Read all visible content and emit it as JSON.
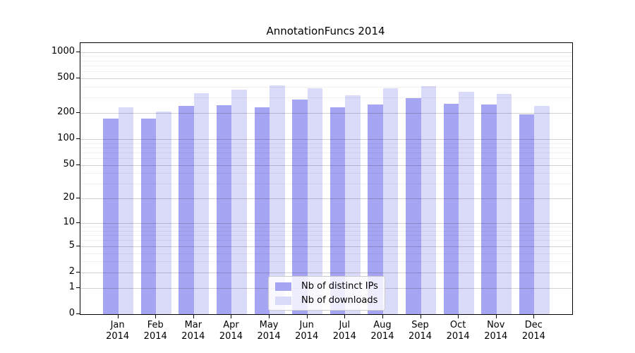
{
  "title": "AnnotationFuncs 2014",
  "chart_data": {
    "type": "bar",
    "title": "AnnotationFuncs 2014",
    "year": "2014",
    "categories": [
      "Jan",
      "Feb",
      "Mar",
      "Apr",
      "May",
      "Jun",
      "Jul",
      "Aug",
      "Sep",
      "Oct",
      "Nov",
      "Dec"
    ],
    "series": [
      {
        "name": "Nb of distinct IPs",
        "key": "distinct-ips",
        "color": "#a5a5f3",
        "values": [
          171,
          171,
          242,
          247,
          233,
          285,
          233,
          252,
          298,
          255,
          252,
          193
        ]
      },
      {
        "name": "Nb of downloads",
        "key": "downloads",
        "color": "#dadaf9",
        "values": [
          233,
          209,
          339,
          371,
          414,
          382,
          317,
          382,
          406,
          348,
          333,
          240
        ]
      }
    ],
    "yscale": "log1p",
    "ylim": [
      0,
      1267
    ],
    "y_major_ticks": [
      0,
      1,
      2,
      5,
      10,
      20,
      50,
      100,
      200,
      500,
      1000
    ],
    "y_minor_ticks": [
      3,
      4,
      6,
      7,
      8,
      9,
      30,
      40,
      60,
      70,
      80,
      90,
      300,
      400,
      600,
      700,
      800,
      900
    ],
    "grid": "both",
    "legend_position": "lower center"
  },
  "colors": {
    "background": "#ffffff",
    "axis": "#000000",
    "major_grid": "rgba(0,0,0,0.18)",
    "minor_grid": "rgba(0,0,0,0.06)",
    "legend_bg": "rgba(255,255,255,0.8)",
    "legend_border": "#cccccc"
  }
}
